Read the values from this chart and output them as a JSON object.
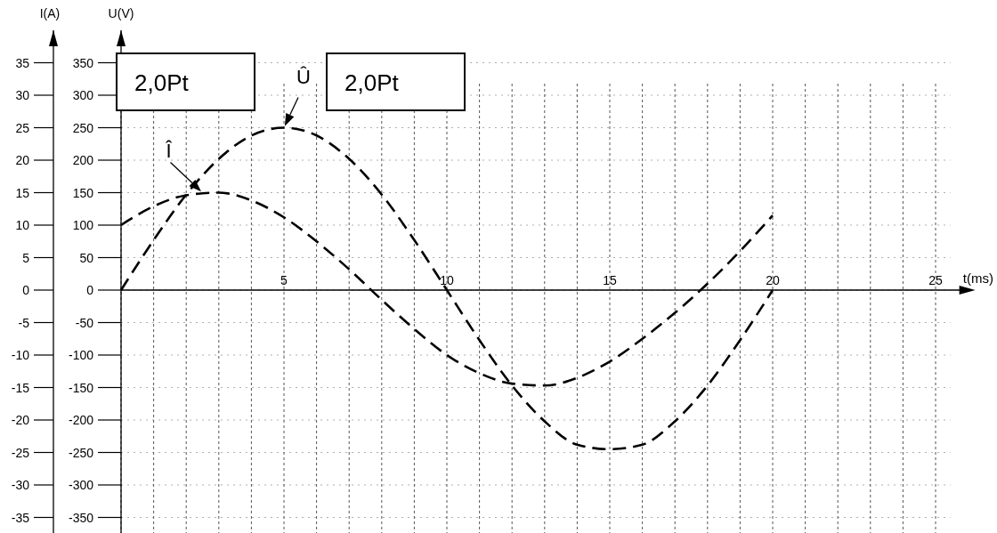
{
  "chart_data": {
    "type": "line",
    "xlabel": "t(ms)",
    "ylabel": "U(V)",
    "y2label": "I(A)",
    "x": [
      0,
      1,
      2,
      3,
      4,
      5,
      6,
      7,
      8,
      9,
      10,
      11,
      12,
      13,
      14,
      15,
      16,
      17,
      18,
      19,
      20
    ],
    "series": [
      {
        "color": "#000000",
        "values": [
          0,
          77,
          147,
          202,
          238,
          250,
          238,
          202,
          147,
          77,
          0,
          -77,
          -147,
          -202,
          -238,
          -245,
          -238,
          -202,
          -147,
          -77,
          0
        ]
      },
      {
        "color": "#000000",
        "axis": "y2",
        "values": [
          10,
          12.9,
          14.6,
          15,
          13.8,
          11.2,
          7.5,
          3.2,
          -1.5,
          -6,
          -10,
          -12.8,
          -14.4,
          -14.7,
          -13.5,
          -11,
          -7.5,
          -3.5,
          1,
          6,
          11.5
        ]
      }
    ],
    "line_style": "dashed",
    "grid": true,
    "xlim": [
      0,
      26
    ],
    "xticks": [
      {
        "value": 0,
        "label": null
      },
      {
        "value": 1,
        "label": null
      },
      {
        "value": 2,
        "label": null
      },
      {
        "value": 3,
        "label": null
      },
      {
        "value": 4,
        "label": null
      },
      5,
      {
        "value": 6,
        "label": null
      },
      {
        "value": 7,
        "label": null
      },
      {
        "value": 8,
        "label": null
      },
      {
        "value": 9,
        "label": null
      },
      10,
      {
        "value": 11,
        "label": null
      },
      {
        "value": 12,
        "label": null
      },
      {
        "value": 13,
        "label": null
      },
      {
        "value": 14,
        "label": null
      },
      15,
      {
        "value": 16,
        "label": null
      },
      {
        "value": 17,
        "label": null
      },
      {
        "value": 18,
        "label": null
      },
      {
        "value": 19,
        "label": null
      },
      20,
      {
        "value": 21,
        "label": null
      },
      {
        "value": 22,
        "label": null
      },
      {
        "value": 23,
        "label": null
      },
      {
        "value": 24,
        "label": null
      },
      25
    ],
    "ylim": [
      -375,
      400
    ],
    "yticks": [
      -350,
      -300,
      -250,
      -200,
      -150,
      -100,
      -50,
      0,
      50,
      100,
      150,
      200,
      250,
      300,
      350
    ],
    "y2lim": [
      -37.5,
      40
    ],
    "y2ticks": [
      -35,
      -30,
      -25,
      -20,
      -15,
      -10,
      -5,
      0,
      5,
      10,
      15,
      20,
      25,
      30,
      35
    ],
    "annotations": [
      "2,0Pt",
      "2,0Pt",
      {
        "text": "Î",
        "x": 2.5,
        "y": 150
      },
      {
        "text": "Û",
        "x": 5,
        "y": 250
      }
    ]
  }
}
